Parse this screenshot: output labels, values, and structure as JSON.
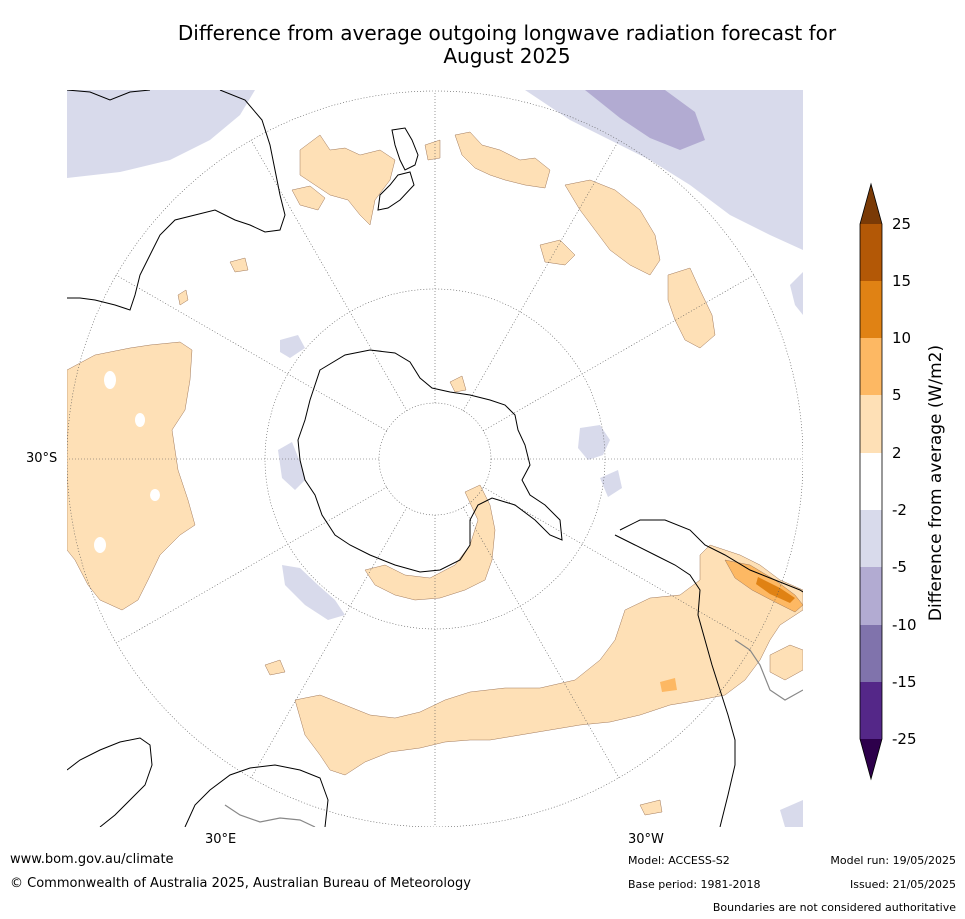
{
  "title_line1": "Difference from average outgoing longwave radiation forecast for",
  "title_line2": "August 2025",
  "graticule_labels": {
    "lat": "30°S",
    "lon_left": "30°E",
    "lon_right": "30°W"
  },
  "colorbar": {
    "label": "Difference from average (W/m2)",
    "ticks": [
      "25",
      "15",
      "10",
      "5",
      "2",
      "-2",
      "-5",
      "-10",
      "-15",
      "-25"
    ],
    "colors": [
      "#7a3a06",
      "#b35806",
      "#e08214",
      "#fdb863",
      "#fee0b6",
      "#ffffff",
      "#d8daeb",
      "#b2abd2",
      "#8073ac",
      "#542788",
      "#2d004b"
    ]
  },
  "footer": {
    "url": "www.bom.gov.au/climate",
    "copyright": "© Commonwealth of Australia 2025, Australian Bureau of Meteorology",
    "model": "Model: ACCESS-S2",
    "base_period": "Base period: 1981-2018",
    "model_run": "Model run: 19/05/2025",
    "issued": "Issued: 21/05/2025",
    "disclaimer": "Boundaries are not considered authoritative"
  }
}
